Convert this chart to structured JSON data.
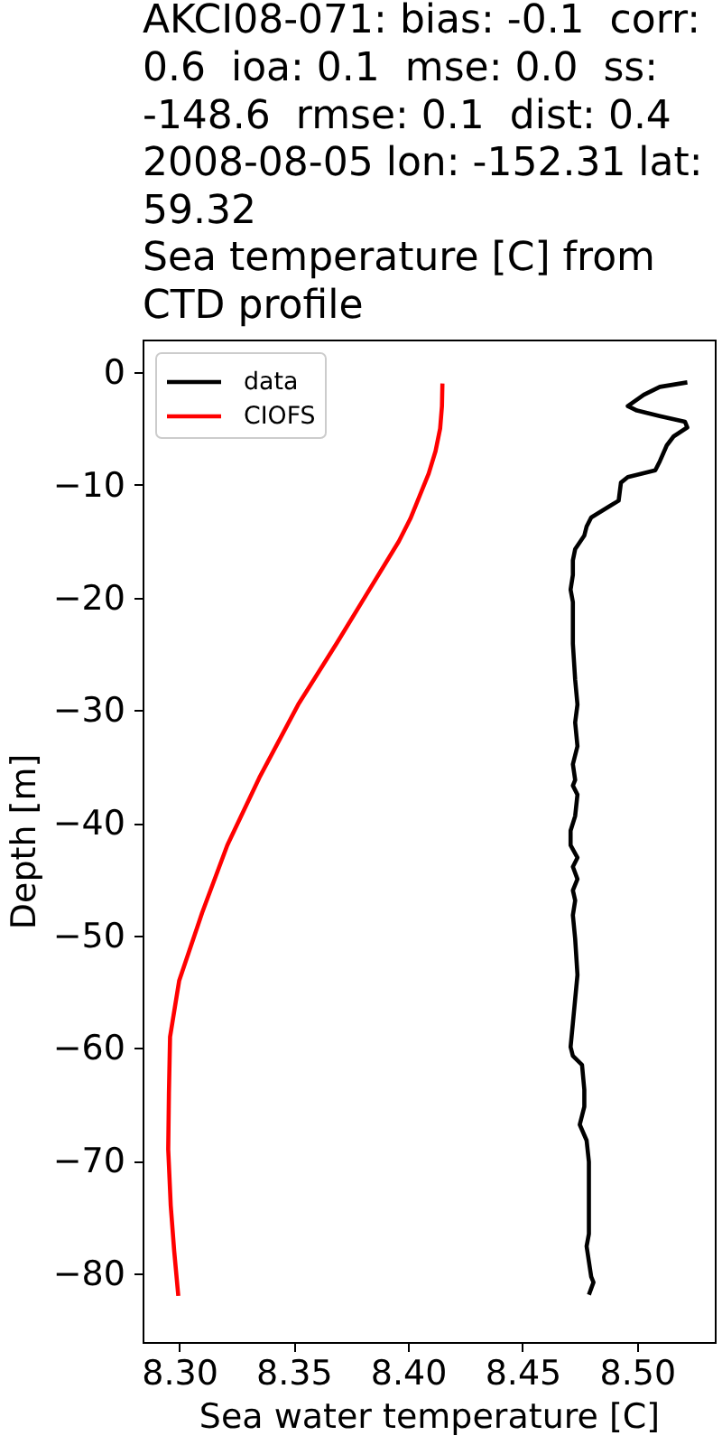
{
  "chart_data": {
    "type": "line",
    "title": "AKCI08-071: bias: -0.1  corr:\n0.6  ioa: 0.1  mse: 0.0  ss:\n-148.6  rmse: 0.1  dist: 0.4\n2008-08-05 lon: -152.31 lat:\n59.32\nSea temperature [C] from\nCTD profile",
    "xlabel": "Sea water temperature [C]",
    "ylabel": "Depth [m]",
    "xlim": [
      8.284,
      8.534
    ],
    "xticks": [
      {
        "value": 8.3,
        "label": "8.30"
      },
      {
        "value": 8.35,
        "label": "8.35"
      },
      {
        "value": 8.4,
        "label": "8.40"
      },
      {
        "value": 8.45,
        "label": "8.45"
      },
      {
        "value": 8.5,
        "label": "8.50"
      }
    ],
    "ylim": [
      -86.1,
      2.9
    ],
    "yticks": [
      -80,
      -70,
      -60,
      -50,
      -40,
      -30,
      -20,
      -10,
      0
    ],
    "legend": "top left",
    "series": [
      {
        "name": "data",
        "color": "#000000",
        "x": [
          8.522,
          8.51,
          8.503,
          8.496,
          8.5,
          8.51,
          8.521,
          8.522,
          8.516,
          8.513,
          8.51,
          8.508,
          8.496,
          8.493,
          8.492,
          8.488,
          8.48,
          8.478,
          8.477,
          8.473,
          8.472,
          8.472,
          8.471,
          8.472,
          8.472,
          8.473,
          8.474,
          8.473,
          8.474,
          8.472,
          8.473,
          8.472,
          8.474,
          8.473,
          8.471,
          8.471,
          8.474,
          8.472,
          8.474,
          8.472,
          8.473,
          8.472,
          8.473,
          8.474,
          8.472,
          8.471,
          8.472,
          8.476,
          8.477,
          8.477,
          8.475,
          8.478,
          8.479,
          8.479,
          8.479,
          8.479,
          8.478,
          8.48,
          8.481,
          8.479
        ],
        "values": [
          -0.9,
          -1.3,
          -2.0,
          -3.0,
          -3.4,
          -3.9,
          -4.4,
          -4.9,
          -5.7,
          -6.5,
          -7.9,
          -8.7,
          -9.3,
          -9.8,
          -11.4,
          -11.9,
          -12.9,
          -13.7,
          -14.5,
          -15.7,
          -16.7,
          -18.0,
          -19.3,
          -20.4,
          -24.1,
          -27.3,
          -29.5,
          -31.1,
          -33.2,
          -34.8,
          -36.2,
          -36.7,
          -37.5,
          -39.4,
          -40.7,
          -42.0,
          -43.1,
          -43.9,
          -45.0,
          -46.0,
          -46.9,
          -48.2,
          -50.3,
          -53.5,
          -57.8,
          -59.9,
          -60.7,
          -61.5,
          -63.7,
          -65.2,
          -66.8,
          -68.2,
          -70.1,
          -72.2,
          -74.4,
          -76.5,
          -77.6,
          -80.3,
          -80.8,
          -81.9
        ]
      },
      {
        "name": "CIOFS",
        "color": "#ff0000",
        "x": [
          8.415,
          8.4148,
          8.414,
          8.412,
          8.409,
          8.405,
          8.401,
          8.396,
          8.39,
          8.381,
          8.369,
          8.352,
          8.335,
          8.321,
          8.31,
          8.3,
          8.296,
          8.2955,
          8.2952,
          8.2963,
          8.2978,
          8.2996
        ],
        "values": [
          -1.0,
          -3.0,
          -5.0,
          -7.0,
          -9.0,
          -11.0,
          -13.0,
          -15.0,
          -17.0,
          -20.0,
          -24.0,
          -29.5,
          -36.0,
          -42.0,
          -48.0,
          -54.0,
          -59.0,
          -64.0,
          -69.0,
          -74.0,
          -78.0,
          -82.0
        ]
      }
    ]
  }
}
